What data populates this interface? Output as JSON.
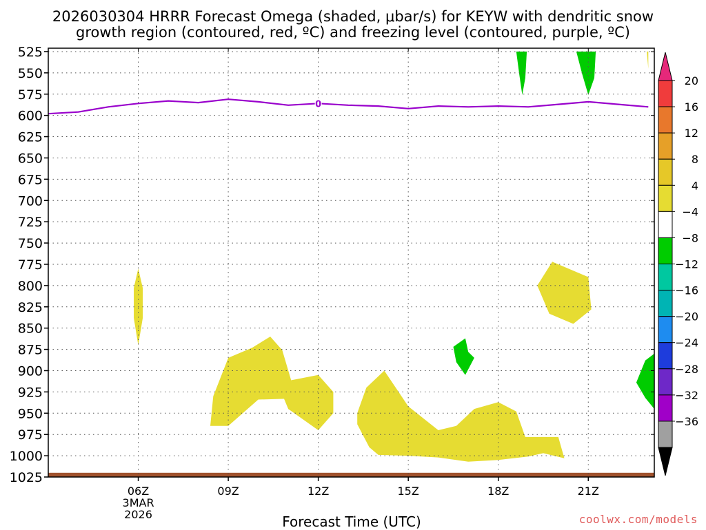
{
  "title": {
    "line1": "2026030304 HRRR Forecast Omega (shaded, μbar/s) for KEYW with dendritic snow",
    "line2": "growth region (contoured, red, ºC) and freezing level (contoured, purple, ºC)"
  },
  "watermark": "coolwx.com/models",
  "chart_data": {
    "type": "contour",
    "title": "2026030304 HRRR Forecast Omega (shaded, μbar/s) for KEYW with dendritic snow growth region (contoured, red, ºC) and freezing level (contoured, purple, ºC)",
    "xlabel": "Forecast Time (UTC)",
    "ylabel": "",
    "x_unit": "hour UTC (3-4 March 2026)",
    "xlim": [
      3.0,
      23.2
    ],
    "y_axis": "pressure (hPa), inverted",
    "ylim": [
      1025,
      525
    ],
    "grid": true,
    "x_ticks": [
      {
        "value": 6,
        "label": "06Z",
        "sub": [
          "3MAR",
          "2026"
        ]
      },
      {
        "value": 9,
        "label": "09Z"
      },
      {
        "value": 12,
        "label": "12Z"
      },
      {
        "value": 15,
        "label": "15Z"
      },
      {
        "value": 18,
        "label": "18Z"
      },
      {
        "value": 21,
        "label": "21Z"
      }
    ],
    "y_ticks": [
      525,
      550,
      575,
      600,
      625,
      650,
      675,
      700,
      725,
      750,
      775,
      800,
      825,
      850,
      875,
      900,
      925,
      950,
      975,
      1000,
      1025
    ],
    "freezing_level": {
      "label": "0",
      "color": "#9900cc",
      "points": [
        [
          3.0,
          598
        ],
        [
          4.0,
          596
        ],
        [
          5.0,
          590
        ],
        [
          6.0,
          586
        ],
        [
          7.0,
          583
        ],
        [
          8.0,
          585
        ],
        [
          9.0,
          581
        ],
        [
          10.0,
          584
        ],
        [
          11.0,
          588
        ],
        [
          12.0,
          586
        ],
        [
          13.0,
          588
        ],
        [
          14.0,
          589
        ],
        [
          15.0,
          592
        ],
        [
          16.0,
          589
        ],
        [
          17.0,
          590
        ],
        [
          18.0,
          589
        ],
        [
          19.0,
          590
        ],
        [
          20.0,
          587
        ],
        [
          21.0,
          584
        ],
        [
          22.0,
          587
        ],
        [
          23.0,
          590
        ]
      ]
    },
    "surface": {
      "color": "#a0522d",
      "pressure_top": 1020,
      "pressure_bottom": 1025
    },
    "omega_regions": [
      {
        "level_label": "4",
        "color": "#e6dc32",
        "points": [
          [
            6.0,
            780
          ],
          [
            6.15,
            803
          ],
          [
            6.15,
            838
          ],
          [
            6.0,
            870
          ],
          [
            5.85,
            838
          ],
          [
            5.85,
            803
          ]
        ]
      },
      {
        "level_label": "4",
        "color": "#e6dc32",
        "points": [
          [
            8.4,
            965
          ],
          [
            8.5,
            930
          ],
          [
            9.0,
            885
          ],
          [
            9.8,
            873
          ],
          [
            10.4,
            860
          ],
          [
            10.8,
            876
          ],
          [
            11.1,
            912
          ],
          [
            11.0,
            933
          ],
          [
            10.0,
            934
          ],
          [
            9.0,
            965
          ]
        ]
      },
      {
        "level_label": "4",
        "color": "#e6dc32",
        "points": [
          [
            10.8,
            928
          ],
          [
            11.0,
            912
          ],
          [
            12.0,
            905
          ],
          [
            12.5,
            925
          ],
          [
            12.5,
            950
          ],
          [
            12.0,
            970
          ],
          [
            11.0,
            945
          ]
        ]
      },
      {
        "level_label": "4",
        "color": "#e6dc32",
        "points": [
          [
            13.3,
            950
          ],
          [
            13.6,
            920
          ],
          [
            14.2,
            900
          ],
          [
            15.0,
            942
          ],
          [
            16.0,
            970
          ],
          [
            16.6,
            965
          ],
          [
            17.2,
            945
          ],
          [
            18.0,
            937
          ],
          [
            18.6,
            948
          ],
          [
            18.9,
            978
          ],
          [
            20.0,
            978
          ],
          [
            20.2,
            1003
          ],
          [
            19.5,
            997
          ],
          [
            19.0,
            1001
          ],
          [
            18.0,
            1005
          ],
          [
            17.0,
            1007
          ],
          [
            16.0,
            1002
          ],
          [
            15.0,
            1000
          ],
          [
            14.0,
            999
          ],
          [
            13.7,
            990
          ],
          [
            13.3,
            963
          ]
        ]
      },
      {
        "level_label": "4",
        "color": "#e6dc32",
        "points": [
          [
            19.3,
            800
          ],
          [
            19.8,
            772
          ],
          [
            21.0,
            790
          ],
          [
            21.1,
            828
          ],
          [
            20.5,
            845
          ],
          [
            19.7,
            833
          ]
        ]
      },
      {
        "level_label": "-8",
        "color": "#00cc00",
        "points": [
          [
            16.5,
            872
          ],
          [
            16.9,
            862
          ],
          [
            17.0,
            878
          ],
          [
            17.2,
            885
          ],
          [
            16.9,
            905
          ],
          [
            16.6,
            890
          ]
        ]
      },
      {
        "level_label": "-8",
        "color": "#00cc00",
        "points": [
          [
            22.6,
            914
          ],
          [
            22.9,
            888
          ],
          [
            23.2,
            880
          ],
          [
            23.2,
            945
          ],
          [
            22.9,
            932
          ]
        ]
      },
      {
        "level_label": "-8",
        "color": "#00cc00",
        "points": [
          [
            18.6,
            525
          ],
          [
            18.95,
            525
          ],
          [
            18.9,
            556
          ],
          [
            18.8,
            576
          ],
          [
            18.7,
            552
          ]
        ]
      },
      {
        "level_label": "-8",
        "color": "#00cc00",
        "points": [
          [
            20.6,
            525
          ],
          [
            21.25,
            525
          ],
          [
            21.2,
            556
          ],
          [
            21.0,
            576
          ],
          [
            20.8,
            552
          ]
        ]
      },
      {
        "level_label": "4",
        "color": "#e6dc32",
        "points": [
          [
            22.95,
            525
          ],
          [
            23.0,
            525
          ],
          [
            23.0,
            545
          ]
        ]
      }
    ],
    "colorbar": {
      "min_label": "-36",
      "max_label": "20",
      "labels": [
        "20",
        "16",
        "12",
        "8",
        "4",
        "-4",
        "-8",
        "-12",
        "-16",
        "-20",
        "-24",
        "-28",
        "-32",
        "-36"
      ],
      "colors": [
        "#f03c3c",
        "#e8782c",
        "#e6a028",
        "#e6c828",
        "#e6dc32",
        "#ffffff",
        "#00cc00",
        "#00c8a0",
        "#00b4b4",
        "#1e8cf0",
        "#1e3cdc",
        "#6e28c8",
        "#a000c8",
        "#a0a0a0"
      ],
      "top_arrow_color": "#e6287a",
      "bottom_arrow_color": "#000000"
    }
  }
}
